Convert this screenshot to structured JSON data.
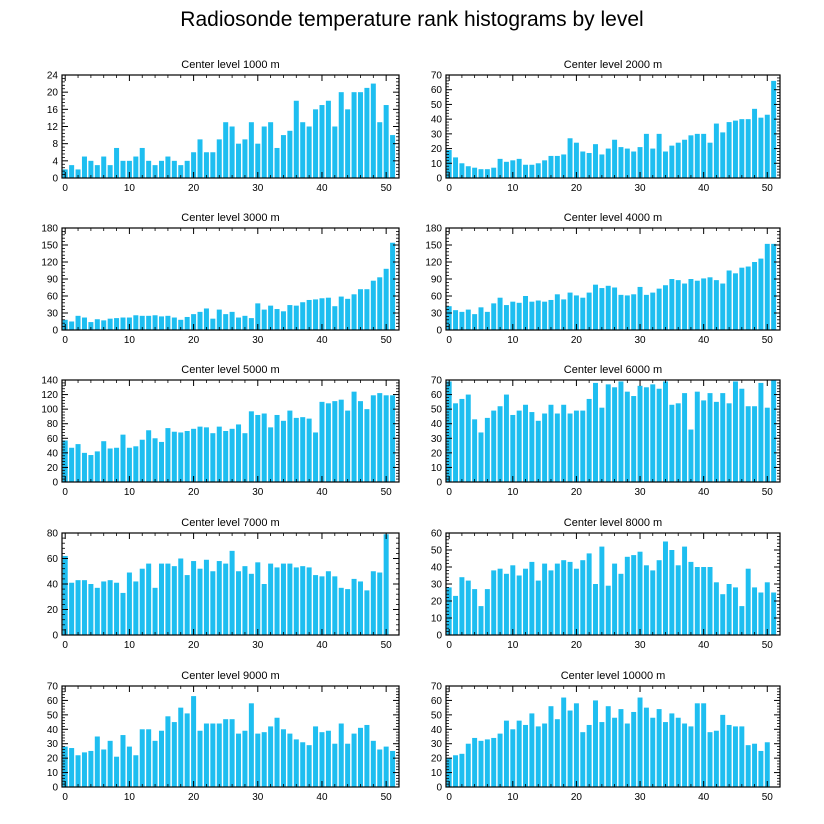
{
  "title": "Radiosonde temperature rank histograms by level",
  "colors": {
    "bar": "#1ebef0",
    "axis": "#000000",
    "background": "#ffffff"
  },
  "chart_data": [
    {
      "type": "bar",
      "title": "Center level 1000 m",
      "xlabel": "",
      "ylabel": "",
      "xlim": [
        -0.5,
        52
      ],
      "xticks": [
        0,
        10,
        20,
        30,
        40,
        50
      ],
      "ylim": [
        0,
        24
      ],
      "yticks": [
        0,
        4,
        8,
        12,
        16,
        20,
        24
      ],
      "values": [
        2,
        3,
        2,
        5,
        4,
        3,
        5,
        3,
        7,
        4,
        4,
        5,
        7,
        4,
        3,
        4,
        5,
        4,
        3,
        4,
        6,
        9,
        6,
        6,
        9,
        13,
        12,
        8,
        9,
        13,
        8,
        12,
        13,
        7,
        10,
        11,
        18,
        13,
        12,
        16,
        17,
        18,
        12,
        20,
        16,
        20,
        20,
        21,
        22,
        13,
        17,
        10
      ]
    },
    {
      "type": "bar",
      "title": "Center level 2000 m",
      "xlabel": "",
      "ylabel": "",
      "xlim": [
        -0.5,
        52
      ],
      "xticks": [
        0,
        10,
        20,
        30,
        40,
        50
      ],
      "ylim": [
        0,
        70
      ],
      "yticks": [
        0,
        10,
        20,
        30,
        40,
        50,
        60,
        70
      ],
      "values": [
        19,
        14,
        10,
        8,
        7,
        6,
        6,
        7,
        13,
        11,
        12,
        13,
        9,
        9,
        10,
        12,
        15,
        15,
        16,
        27,
        24,
        18,
        17,
        23,
        16,
        20,
        26,
        21,
        20,
        18,
        21,
        30,
        20,
        30,
        18,
        22,
        24,
        26,
        29,
        30,
        30,
        24,
        37,
        31,
        38,
        39,
        40,
        40,
        47,
        41,
        43,
        66
      ]
    },
    {
      "type": "bar",
      "title": "Center level 3000 m",
      "xlabel": "",
      "ylabel": "",
      "xlim": [
        -0.5,
        52
      ],
      "xticks": [
        0,
        10,
        20,
        30,
        40,
        50
      ],
      "ylim": [
        0,
        180
      ],
      "yticks": [
        0,
        30,
        60,
        90,
        120,
        150,
        180
      ],
      "values": [
        18,
        15,
        25,
        22,
        14,
        19,
        17,
        20,
        21,
        22,
        22,
        26,
        25,
        25,
        26,
        24,
        25,
        22,
        18,
        23,
        28,
        32,
        38,
        20,
        36,
        28,
        32,
        22,
        25,
        21,
        47,
        36,
        43,
        37,
        33,
        44,
        43,
        49,
        53,
        54,
        56,
        57,
        42,
        59,
        55,
        63,
        72,
        72,
        87,
        93,
        108,
        154
      ]
    },
    {
      "type": "bar",
      "title": "Center level 4000 m",
      "xlabel": "",
      "ylabel": "",
      "xlim": [
        -0.5,
        52
      ],
      "xticks": [
        0,
        10,
        20,
        30,
        40,
        50
      ],
      "ylim": [
        0,
        180
      ],
      "yticks": [
        0,
        30,
        60,
        90,
        120,
        150,
        180
      ],
      "values": [
        42,
        35,
        32,
        36,
        28,
        40,
        32,
        47,
        57,
        44,
        50,
        48,
        60,
        50,
        52,
        50,
        53,
        63,
        54,
        66,
        61,
        57,
        66,
        80,
        74,
        78,
        75,
        62,
        61,
        63,
        76,
        62,
        66,
        73,
        79,
        90,
        88,
        82,
        90,
        87,
        91,
        93,
        88,
        82,
        105,
        100,
        110,
        112,
        120,
        126,
        152,
        152
      ]
    },
    {
      "type": "bar",
      "title": "Center level 5000 m",
      "xlabel": "",
      "ylabel": "",
      "xlim": [
        -0.5,
        52
      ],
      "xticks": [
        0,
        10,
        20,
        30,
        40,
        50
      ],
      "ylim": [
        0,
        140
      ],
      "yticks": [
        0,
        20,
        40,
        60,
        80,
        100,
        120,
        140
      ],
      "values": [
        57,
        47,
        52,
        40,
        37,
        42,
        56,
        46,
        47,
        65,
        47,
        49,
        58,
        71,
        60,
        55,
        74,
        69,
        68,
        70,
        73,
        76,
        75,
        67,
        76,
        70,
        73,
        79,
        67,
        97,
        92,
        94,
        75,
        92,
        84,
        98,
        88,
        89,
        87,
        68,
        110,
        108,
        111,
        113,
        98,
        124,
        111,
        100,
        119,
        122,
        119,
        119
      ]
    },
    {
      "type": "bar",
      "title": "Center level 6000 m",
      "xlabel": "",
      "ylabel": "",
      "xlim": [
        -0.5,
        52
      ],
      "xticks": [
        0,
        10,
        20,
        30,
        40,
        50
      ],
      "ylim": [
        0,
        70
      ],
      "yticks": [
        0,
        10,
        20,
        30,
        40,
        50,
        60,
        70
      ],
      "values": [
        69,
        54,
        57,
        60,
        43,
        34,
        44,
        49,
        52,
        60,
        46,
        49,
        53,
        48,
        42,
        47,
        53,
        47,
        53,
        47,
        49,
        49,
        57,
        68,
        51,
        67,
        65,
        69,
        62,
        59,
        66,
        65,
        67,
        64,
        69,
        53,
        54,
        61,
        36,
        62,
        56,
        61,
        55,
        61,
        54,
        69,
        64,
        52,
        52,
        68,
        51,
        70
      ]
    },
    {
      "type": "bar",
      "title": "Center level 7000 m",
      "xlabel": "",
      "ylabel": "",
      "xlim": [
        -0.5,
        52
      ],
      "xticks": [
        0,
        10,
        20,
        30,
        40,
        50
      ],
      "ylim": [
        0,
        80
      ],
      "yticks": [
        0,
        20,
        40,
        60,
        80
      ],
      "values": [
        62,
        41,
        43,
        43,
        40,
        37,
        42,
        43,
        41,
        33,
        49,
        42,
        52,
        56,
        37,
        56,
        56,
        54,
        60,
        47,
        58,
        52,
        59,
        50,
        58,
        56,
        66,
        50,
        54,
        48,
        57,
        40,
        56,
        53,
        56,
        56,
        53,
        54,
        53,
        47,
        46,
        50,
        46,
        37,
        36,
        44,
        42,
        35,
        50,
        49,
        79
      ]
    },
    {
      "type": "bar",
      "title": "Center level 8000 m",
      "xlabel": "",
      "ylabel": "",
      "xlim": [
        -0.5,
        52
      ],
      "xticks": [
        0,
        10,
        20,
        30,
        40,
        50
      ],
      "ylim": [
        0,
        60
      ],
      "yticks": [
        0,
        10,
        20,
        30,
        40,
        50,
        60
      ],
      "values": [
        28,
        23,
        34,
        32,
        27,
        17,
        27,
        38,
        39,
        36,
        41,
        35,
        39,
        43,
        32,
        42,
        38,
        42,
        44,
        43,
        39,
        44,
        48,
        30,
        52,
        29,
        42,
        36,
        46,
        47,
        49,
        41,
        38,
        44,
        55,
        50,
        41,
        52,
        43,
        40,
        40,
        40,
        31,
        24,
        30,
        28,
        17,
        39,
        28,
        25,
        31,
        25
      ]
    },
    {
      "type": "bar",
      "title": "Center level 9000 m",
      "xlabel": "",
      "ylabel": "",
      "xlim": [
        -0.5,
        52
      ],
      "xticks": [
        0,
        10,
        20,
        30,
        40,
        50
      ],
      "ylim": [
        0,
        70
      ],
      "yticks": [
        0,
        10,
        20,
        30,
        40,
        50,
        60,
        70
      ],
      "values": [
        28,
        27,
        22,
        24,
        25,
        35,
        26,
        32,
        21,
        36,
        28,
        22,
        40,
        40,
        32,
        39,
        49,
        45,
        55,
        51,
        63,
        39,
        44,
        44,
        44,
        47,
        47,
        37,
        39,
        58,
        37,
        38,
        42,
        48,
        40,
        37,
        33,
        31,
        29,
        42,
        38,
        39,
        30,
        44,
        30,
        37,
        41,
        43,
        32,
        26,
        28,
        25
      ]
    },
    {
      "type": "bar",
      "title": "Center level 10000 m",
      "xlabel": "",
      "ylabel": "",
      "xlim": [
        -0.5,
        52
      ],
      "xticks": [
        0,
        10,
        20,
        30,
        40,
        50
      ],
      "ylim": [
        0,
        70
      ],
      "yticks": [
        0,
        10,
        20,
        30,
        40,
        50,
        60,
        70
      ],
      "values": [
        20,
        22,
        23,
        30,
        34,
        32,
        33,
        34,
        37,
        46,
        40,
        46,
        43,
        51,
        42,
        44,
        56,
        47,
        62,
        53,
        58,
        38,
        43,
        60,
        45,
        56,
        48,
        54,
        44,
        52,
        62,
        55,
        48,
        54,
        45,
        51,
        48,
        44,
        42,
        58,
        58,
        38,
        39,
        50,
        43,
        42,
        42,
        29,
        30,
        25,
        31
      ]
    }
  ]
}
